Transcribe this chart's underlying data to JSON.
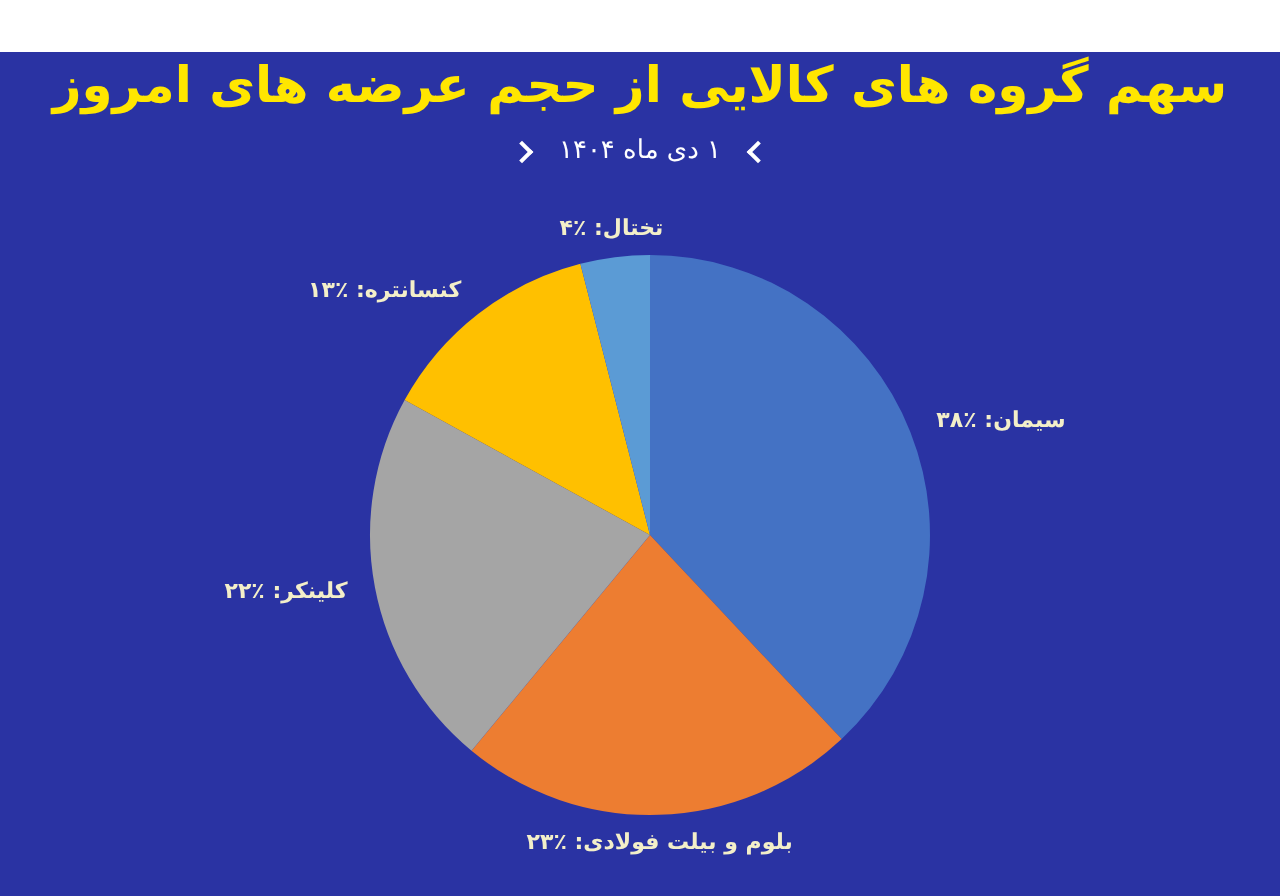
{
  "chart_data": {
    "type": "pie",
    "title": "سهم گروه های کالایی از حجم عرضه های امروز",
    "subtitle": "۱ دی ماه ۱۴۰۴",
    "categories": [
      "سیمان",
      "بلوم و بیلت فولادی",
      "کلینکر",
      "کنسانتره",
      "تختال"
    ],
    "values": [
      38,
      23,
      22,
      13,
      4
    ],
    "value_labels": [
      "٪۳۸",
      "٪۲۳",
      "٪۲۲",
      "٪۱۳",
      "٪۴"
    ],
    "colors": [
      "#4472c4",
      "#ed7d31",
      "#a5a5a5",
      "#ffc000",
      "#5b9bd5"
    ],
    "legend": false
  }
}
